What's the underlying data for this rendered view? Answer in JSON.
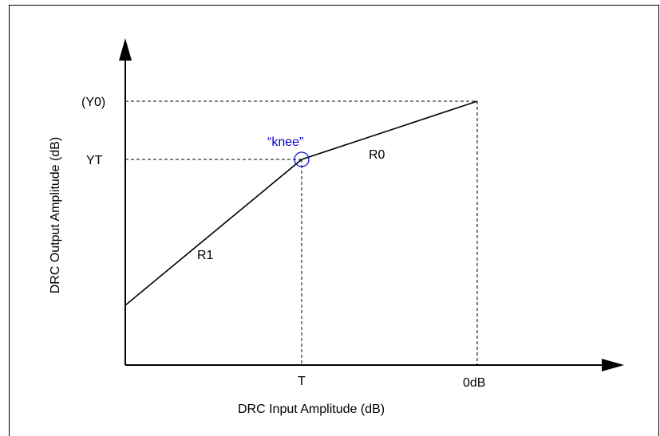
{
  "diagram": {
    "y_axis_label": "DRC Output Amplitude (dB)",
    "x_axis_label": "DRC Input Amplitude (dB)",
    "y_ticks": {
      "y0": "(Y0)",
      "yt": "YT"
    },
    "x_ticks": {
      "t": "T",
      "zero_db": "0dB"
    },
    "segments": {
      "r1": "R1",
      "r0": "R0"
    },
    "knee_label": "“knee”",
    "colors": {
      "line": "#000000",
      "knee": "#0000cc"
    }
  }
}
